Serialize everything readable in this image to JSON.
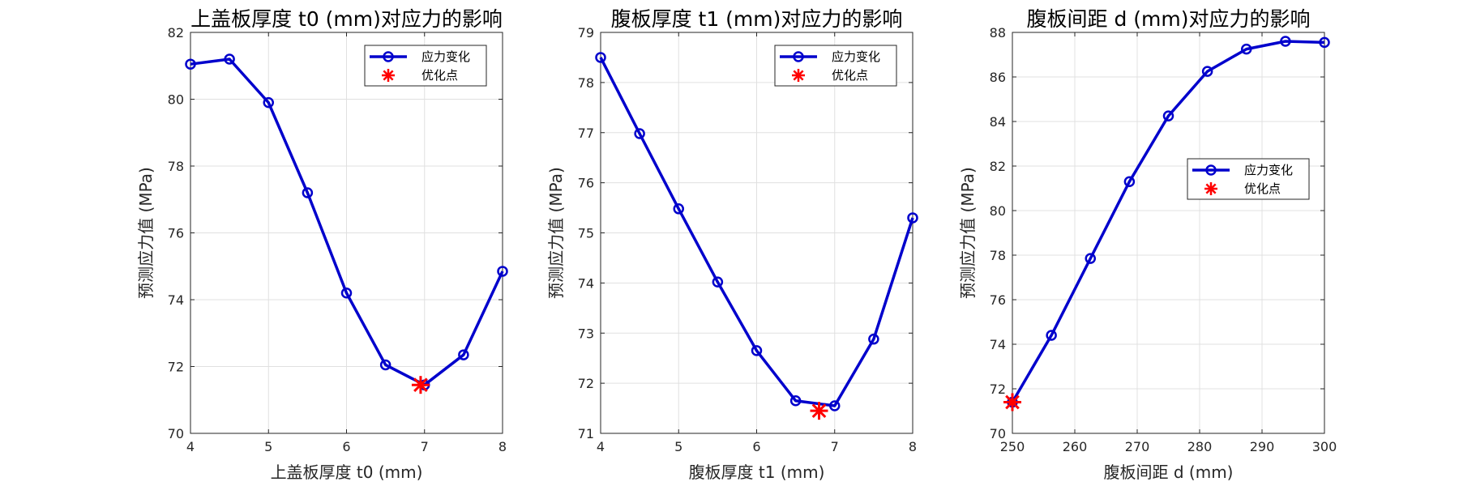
{
  "colors": {
    "series": "#0000cc",
    "marker_opt": "#ff0000",
    "grid": "#e0e0e0",
    "axis": "#262626"
  },
  "chart_data": [
    {
      "type": "line",
      "title": "上盖板厚度 t0 (mm)对应力的影响",
      "xlabel": "上盖板厚度 t0 (mm)",
      "ylabel": "预测应力值 (MPa)",
      "xlim": [
        4,
        8
      ],
      "ylim": [
        70,
        82
      ],
      "xticks": [
        4,
        5,
        6,
        7,
        8
      ],
      "yticks": [
        70,
        72,
        74,
        76,
        78,
        80,
        82
      ],
      "grid": true,
      "legend_position": "top-right",
      "series": [
        {
          "name": "应力变化",
          "x": [
            4,
            4.5,
            5,
            5.5,
            6,
            6.5,
            7,
            7.5,
            8
          ],
          "y": [
            81.05,
            81.2,
            79.9,
            77.2,
            74.2,
            72.05,
            71.45,
            72.35,
            74.85
          ]
        },
        {
          "name": "优化点",
          "x": [
            6.95
          ],
          "y": [
            71.45
          ]
        }
      ]
    },
    {
      "type": "line",
      "title": "腹板厚度 t1 (mm)对应力的影响",
      "xlabel": "腹板厚度 t1 (mm)",
      "ylabel": "预测应力值 (MPa)",
      "xlim": [
        4,
        8
      ],
      "ylim": [
        71,
        79
      ],
      "xticks": [
        4,
        5,
        6,
        7,
        8
      ],
      "yticks": [
        71,
        72,
        73,
        74,
        75,
        76,
        77,
        78,
        79
      ],
      "grid": true,
      "legend_position": "top-right",
      "series": [
        {
          "name": "应力变化",
          "x": [
            4,
            4.5,
            5,
            5.5,
            6,
            6.5,
            7,
            7.5,
            8
          ],
          "y": [
            78.5,
            76.98,
            75.48,
            74.02,
            72.65,
            71.65,
            71.55,
            72.88,
            75.3
          ]
        },
        {
          "name": "优化点",
          "x": [
            6.8
          ],
          "y": [
            71.45
          ]
        }
      ]
    },
    {
      "type": "line",
      "title": "腹板间距 d (mm)对应力的影响",
      "xlabel": "腹板间距 d (mm)",
      "ylabel": "预测应力值 (MPa)",
      "xlim": [
        250,
        300
      ],
      "ylim": [
        70,
        88
      ],
      "xticks": [
        250,
        260,
        270,
        280,
        290,
        300
      ],
      "yticks": [
        70,
        72,
        74,
        76,
        78,
        80,
        82,
        84,
        86,
        88
      ],
      "grid": true,
      "legend_position": "center-right",
      "series": [
        {
          "name": "应力变化",
          "x": [
            250,
            256.25,
            262.5,
            268.75,
            275,
            281.25,
            287.5,
            293.75,
            300
          ],
          "y": [
            71.4,
            74.4,
            77.85,
            81.3,
            84.25,
            86.25,
            87.25,
            87.6,
            87.55
          ]
        },
        {
          "name": "优化点",
          "x": [
            250
          ],
          "y": [
            71.4
          ]
        }
      ]
    }
  ]
}
